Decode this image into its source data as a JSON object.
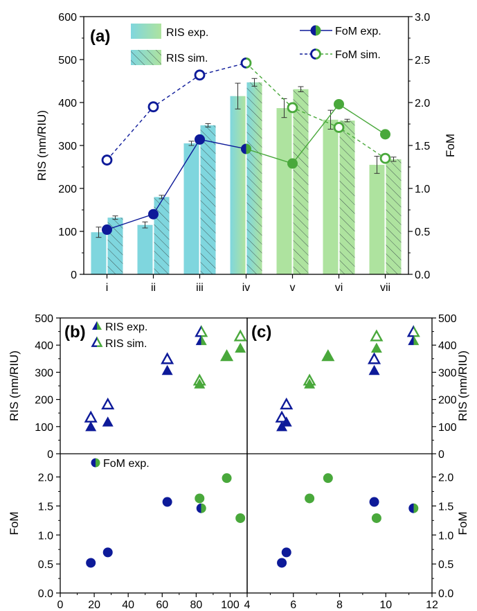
{
  "chart_data": [
    {
      "type": "bar",
      "panel": "(a)",
      "categories": [
        "i",
        "ii",
        "iii",
        "iv",
        "v",
        "vi",
        "vii"
      ],
      "ylabel": "RIS (nm/RIU)",
      "ylim": [
        0,
        600
      ],
      "yticks": [
        "0",
        "100",
        "200",
        "300",
        "400",
        "500",
        "600"
      ],
      "y2label": "FoM",
      "y2lim": [
        0,
        3.0
      ],
      "y2ticks": [
        "0.0",
        "0.5",
        "1.0",
        "1.5",
        "2.0",
        "2.5",
        "3.0"
      ],
      "series": [
        {
          "name": "RIS exp.",
          "kind": "bar",
          "axis": "left",
          "values": [
            98,
            115,
            305,
            415,
            387,
            360,
            255
          ],
          "errors": [
            12,
            7,
            5,
            30,
            22,
            22,
            20
          ]
        },
        {
          "name": "RIS sim.",
          "kind": "bar-hatched",
          "axis": "left",
          "values": [
            132,
            180,
            347,
            447,
            431,
            358,
            268
          ],
          "errors": [
            4,
            4,
            4,
            9,
            6,
            3,
            5
          ]
        },
        {
          "name": "FoM exp.",
          "kind": "line-filled-marker",
          "axis": "right",
          "values": [
            0.52,
            0.7,
            1.57,
            1.46,
            1.29,
            1.98,
            1.63
          ]
        },
        {
          "name": "FoM sim.",
          "kind": "dashed-line-open-marker",
          "axis": "right",
          "values": [
            1.33,
            1.95,
            2.32,
            2.46,
            1.94,
            1.71,
            1.35
          ]
        }
      ],
      "group_colors": {
        "blue": "#0d1a99",
        "green": "#49a83b",
        "cyan": "#7fd6de",
        "lightgreen": "#aee39f"
      },
      "grid": false,
      "legend": "top"
    },
    {
      "type": "scatter",
      "panel": "(b)",
      "xlim": [
        0,
        110
      ],
      "xticks": [
        "0",
        "20",
        "40",
        "60",
        "80",
        "100"
      ],
      "top": {
        "ylabel": "RIS (nm/RIU)",
        "ylim": [
          0,
          500
        ],
        "yticks": [
          "0",
          "100",
          "200",
          "300",
          "400",
          "500"
        ],
        "series": [
          {
            "name": "RIS exp.",
            "marker": "filled-triangle",
            "points": [
              {
                "x": 18,
                "y": 98,
                "c": "blue"
              },
              {
                "x": 28,
                "y": 115,
                "c": "blue"
              },
              {
                "x": 63,
                "y": 305,
                "c": "blue"
              },
              {
                "x": 83,
                "y": 415,
                "c": "mix"
              },
              {
                "x": 98,
                "y": 360,
                "c": "green"
              },
              {
                "x": 106,
                "y": 387,
                "c": "green"
              },
              {
                "x": 82,
                "y": 255,
                "c": "green"
              }
            ]
          },
          {
            "name": "RIS sim.",
            "marker": "open-triangle",
            "points": [
              {
                "x": 18,
                "y": 132,
                "c": "blue"
              },
              {
                "x": 28,
                "y": 180,
                "c": "blue"
              },
              {
                "x": 63,
                "y": 347,
                "c": "blue"
              },
              {
                "x": 83,
                "y": 447,
                "c": "mix"
              },
              {
                "x": 98,
                "y": 358,
                "c": "green"
              },
              {
                "x": 106,
                "y": 431,
                "c": "green"
              },
              {
                "x": 82,
                "y": 268,
                "c": "green"
              }
            ]
          }
        ]
      },
      "bottom": {
        "ylabel": "FoM",
        "ylim": [
          0,
          2.4
        ],
        "yticks": [
          "0.0",
          "0.5",
          "1.0",
          "1.5",
          "2.0"
        ],
        "series": [
          {
            "name": "FoM exp.",
            "marker": "filled-circle",
            "points": [
              {
                "x": 18,
                "y": 0.52,
                "c": "blue"
              },
              {
                "x": 28,
                "y": 0.7,
                "c": "blue"
              },
              {
                "x": 63,
                "y": 1.57,
                "c": "blue"
              },
              {
                "x": 83,
                "y": 1.46,
                "c": "mix"
              },
              {
                "x": 98,
                "y": 1.98,
                "c": "green"
              },
              {
                "x": 106,
                "y": 1.29,
                "c": "green"
              },
              {
                "x": 82,
                "y": 1.63,
                "c": "green"
              }
            ]
          }
        ]
      }
    },
    {
      "type": "scatter",
      "panel": "(c)",
      "xlim": [
        4,
        12
      ],
      "xticks": [
        "4",
        "6",
        "8",
        "10",
        "12"
      ],
      "top": {
        "ylabel": "RIS (nm/RIU)",
        "ylim": [
          0,
          500
        ],
        "yticks": [
          "0",
          "100",
          "200",
          "300",
          "400",
          "500"
        ],
        "series": [
          {
            "name": "RIS exp.",
            "marker": "filled-triangle",
            "points": [
              {
                "x": 5.5,
                "y": 98,
                "c": "blue"
              },
              {
                "x": 5.7,
                "y": 115,
                "c": "blue"
              },
              {
                "x": 9.5,
                "y": 305,
                "c": "blue"
              },
              {
                "x": 11.2,
                "y": 415,
                "c": "mix"
              },
              {
                "x": 9.6,
                "y": 387,
                "c": "green"
              },
              {
                "x": 7.5,
                "y": 360,
                "c": "green"
              },
              {
                "x": 6.7,
                "y": 255,
                "c": "green"
              }
            ]
          },
          {
            "name": "RIS sim.",
            "marker": "open-triangle",
            "points": [
              {
                "x": 5.5,
                "y": 132,
                "c": "blue"
              },
              {
                "x": 5.7,
                "y": 180,
                "c": "blue"
              },
              {
                "x": 9.5,
                "y": 347,
                "c": "blue"
              },
              {
                "x": 11.2,
                "y": 447,
                "c": "mix"
              },
              {
                "x": 9.6,
                "y": 431,
                "c": "green"
              },
              {
                "x": 7.5,
                "y": 358,
                "c": "green"
              },
              {
                "x": 6.7,
                "y": 268,
                "c": "green"
              }
            ]
          }
        ]
      },
      "bottom": {
        "ylabel": "FoM",
        "ylim": [
          0,
          2.4
        ],
        "yticks": [
          "0.0",
          "0.5",
          "1.0",
          "1.5",
          "2.0"
        ],
        "series": [
          {
            "name": "FoM exp.",
            "marker": "filled-circle",
            "points": [
              {
                "x": 5.5,
                "y": 0.52,
                "c": "blue"
              },
              {
                "x": 5.7,
                "y": 0.7,
                "c": "blue"
              },
              {
                "x": 9.5,
                "y": 1.57,
                "c": "blue"
              },
              {
                "x": 11.2,
                "y": 1.46,
                "c": "mix"
              },
              {
                "x": 9.6,
                "y": 1.29,
                "c": "green"
              },
              {
                "x": 7.5,
                "y": 1.98,
                "c": "green"
              },
              {
                "x": 6.7,
                "y": 1.63,
                "c": "green"
              }
            ]
          }
        ]
      }
    }
  ]
}
